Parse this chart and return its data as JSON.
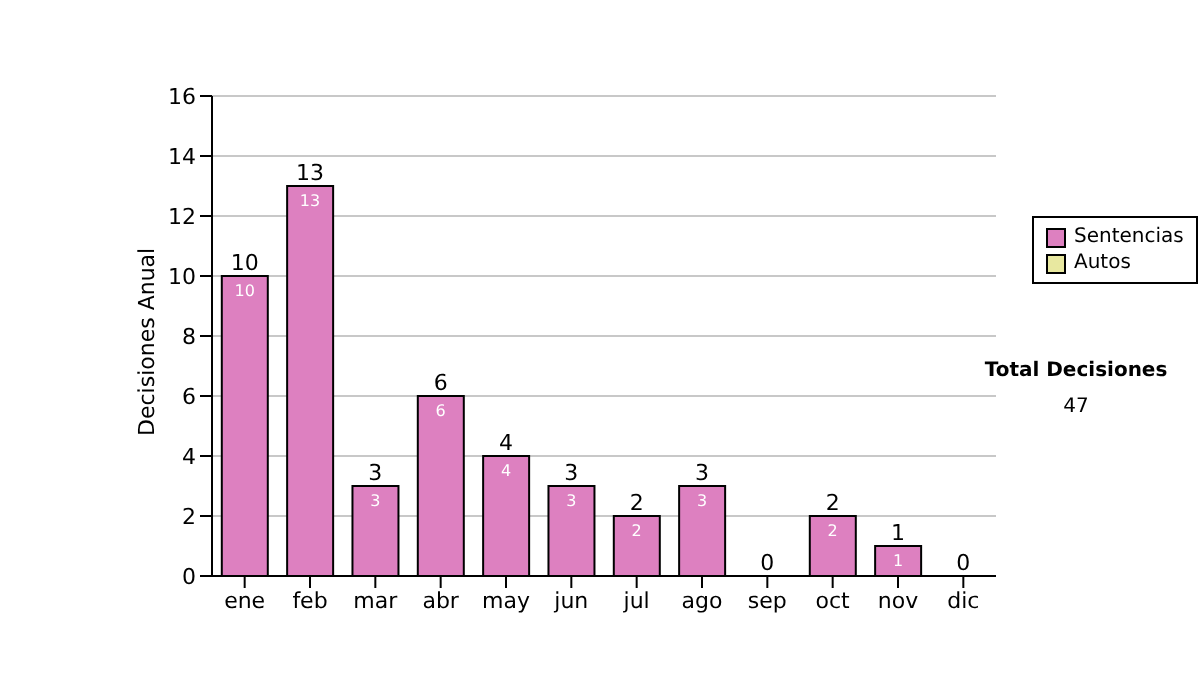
{
  "chart_data": {
    "type": "bar",
    "stacked": true,
    "ylabel": "Decisiones Anual",
    "categories": [
      "ene",
      "feb",
      "mar",
      "abr",
      "may",
      "jun",
      "jul",
      "ago",
      "sep",
      "oct",
      "nov",
      "dic"
    ],
    "series": [
      {
        "name": "Sentencias",
        "color": "#dd80c0",
        "values": [
          10,
          13,
          3,
          6,
          4,
          3,
          2,
          3,
          0,
          2,
          1,
          0
        ],
        "value_labels": [
          "10",
          "13",
          "3",
          "6",
          "4",
          "3",
          "2",
          "3",
          null,
          "2",
          "1",
          null
        ]
      },
      {
        "name": "Autos",
        "color": "#e8e8a0",
        "values": [
          0,
          0,
          0,
          0,
          0,
          0,
          0,
          0,
          0,
          0,
          0,
          0
        ]
      }
    ],
    "totals": [
      "10",
      "13",
      "3",
      "6",
      "4",
      "3",
      "2",
      "3",
      "0",
      "2",
      "1",
      "0"
    ],
    "ylim": [
      0,
      16
    ],
    "yticks": [
      0,
      2,
      4,
      6,
      8,
      10,
      12,
      14,
      16
    ],
    "grid": "y",
    "legend": "right",
    "annotations": [
      "Total Decisiones",
      "47"
    ]
  }
}
